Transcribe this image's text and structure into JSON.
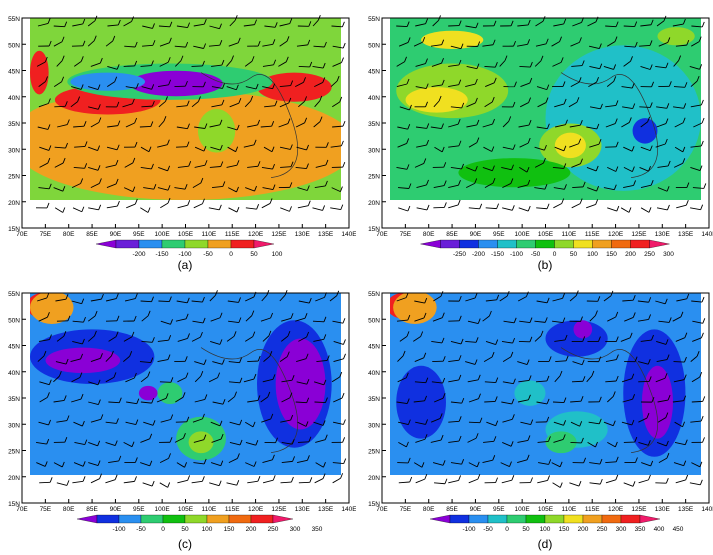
{
  "lat_labels": [
    "55N",
    "50N",
    "45N",
    "40N",
    "35N",
    "30N",
    "25N",
    "20N",
    "15N"
  ],
  "lon_labels": [
    "70E",
    "75E",
    "80E",
    "85E",
    "90E",
    "95E",
    "100E",
    "105E",
    "110E",
    "115E",
    "120E",
    "125E",
    "130E",
    "135E",
    "140E"
  ],
  "panels": [
    {
      "label": "(a)",
      "bg": "#7fd63b",
      "levels": [
        "-200",
        "-150",
        "-100",
        "-50",
        "0",
        "50",
        "100"
      ],
      "colors": [
        "#8a00d6",
        "#6a1fd8",
        "#2a8ff0",
        "#2ecc71",
        "#8fd82a",
        "#f0a020",
        "#f02020",
        "#f01a6a"
      ],
      "blobs": [
        [
          "#f0a020",
          0.5,
          0.7,
          0.55,
          0.3
        ],
        [
          "#f0a020",
          0.15,
          0.65,
          0.2,
          0.2
        ],
        [
          "#f02020",
          0.25,
          0.45,
          0.17,
          0.08
        ],
        [
          "#f02020",
          0.85,
          0.38,
          0.12,
          0.08
        ],
        [
          "#f02020",
          0.03,
          0.3,
          0.03,
          0.12
        ],
        [
          "#2ecc71",
          0.45,
          0.35,
          0.33,
          0.1
        ],
        [
          "#8a00d6",
          0.47,
          0.36,
          0.15,
          0.07
        ],
        [
          "#2a8ff0",
          0.25,
          0.35,
          0.12,
          0.05
        ],
        [
          "#8fd82a",
          0.6,
          0.62,
          0.06,
          0.12
        ]
      ]
    },
    {
      "label": "(b)",
      "bg": "#2ecc71",
      "levels": [
        "-250",
        "-200",
        "-150",
        "-100",
        "-50",
        "0",
        "50",
        "100",
        "150",
        "200",
        "250",
        "300"
      ],
      "colors": [
        "#8a00d6",
        "#6a1fd8",
        "#1030e0",
        "#2a8ff0",
        "#20c0c8",
        "#2ecc71",
        "#10c010",
        "#8fd82a",
        "#f0e020",
        "#f0a020",
        "#f06a10",
        "#f02020",
        "#f01a6a"
      ],
      "blobs": [
        [
          "#20c0c8",
          0.75,
          0.55,
          0.25,
          0.4
        ],
        [
          "#8fd82a",
          0.2,
          0.4,
          0.18,
          0.15
        ],
        [
          "#f0e020",
          0.15,
          0.45,
          0.1,
          0.07
        ],
        [
          "#8fd82a",
          0.58,
          0.7,
          0.1,
          0.12
        ],
        [
          "#f0e020",
          0.58,
          0.7,
          0.05,
          0.07
        ],
        [
          "#1030e0",
          0.82,
          0.62,
          0.04,
          0.07
        ],
        [
          "#f0e020",
          0.2,
          0.12,
          0.1,
          0.05
        ],
        [
          "#8fd82a",
          0.92,
          0.1,
          0.06,
          0.05
        ],
        [
          "#10c010",
          0.4,
          0.85,
          0.18,
          0.08
        ]
      ]
    },
    {
      "label": "(c)",
      "bg": "#2a8ff0",
      "levels": [
        "-100",
        "-50",
        "0",
        "50",
        "100",
        "150",
        "200",
        "250",
        "300",
        "350"
      ],
      "colors": [
        "#8a00d6",
        "#1030e0",
        "#2a8ff0",
        "#2ecc71",
        "#10c010",
        "#8fd82a",
        "#f0a020",
        "#f06a10",
        "#f02020",
        "#f01a6a"
      ],
      "blobs": [
        [
          "#1030e0",
          0.2,
          0.35,
          0.2,
          0.15
        ],
        [
          "#8a00d6",
          0.17,
          0.37,
          0.12,
          0.07
        ],
        [
          "#1030e0",
          0.85,
          0.5,
          0.12,
          0.35
        ],
        [
          "#8a00d6",
          0.87,
          0.5,
          0.08,
          0.25
        ],
        [
          "#2ecc71",
          0.55,
          0.8,
          0.08,
          0.12
        ],
        [
          "#8fd82a",
          0.55,
          0.82,
          0.04,
          0.06
        ],
        [
          "#f02020",
          0.04,
          0.07,
          0.05,
          0.07
        ],
        [
          "#f0a020",
          0.07,
          0.08,
          0.07,
          0.09
        ],
        [
          "#2ecc71",
          0.45,
          0.55,
          0.04,
          0.06
        ],
        [
          "#8a00d6",
          0.38,
          0.55,
          0.03,
          0.04
        ]
      ]
    },
    {
      "label": "(d)",
      "bg": "#2a8ff0",
      "levels": [
        "-100",
        "-50",
        "0",
        "50",
        "100",
        "150",
        "200",
        "250",
        "300",
        "350",
        "400",
        "450"
      ],
      "colors": [
        "#8a00d6",
        "#1030e0",
        "#2a8ff0",
        "#20c0c8",
        "#2ecc71",
        "#10c010",
        "#8fd82a",
        "#f0e020",
        "#f0a020",
        "#f06a10",
        "#f02020",
        "#f01a6a"
      ],
      "blobs": [
        [
          "#1030e0",
          0.85,
          0.55,
          0.1,
          0.35
        ],
        [
          "#8a00d6",
          0.86,
          0.6,
          0.05,
          0.2
        ],
        [
          "#1030e0",
          0.1,
          0.6,
          0.08,
          0.2
        ],
        [
          "#1030e0",
          0.6,
          0.25,
          0.1,
          0.1
        ],
        [
          "#8a00d6",
          0.62,
          0.2,
          0.03,
          0.05
        ],
        [
          "#20c0c8",
          0.6,
          0.75,
          0.1,
          0.1
        ],
        [
          "#2ecc71",
          0.55,
          0.82,
          0.05,
          0.06
        ],
        [
          "#f02020",
          0.04,
          0.07,
          0.05,
          0.07
        ],
        [
          "#f0a020",
          0.08,
          0.08,
          0.07,
          0.09
        ],
        [
          "#20c0c8",
          0.45,
          0.55,
          0.05,
          0.07
        ]
      ]
    }
  ]
}
